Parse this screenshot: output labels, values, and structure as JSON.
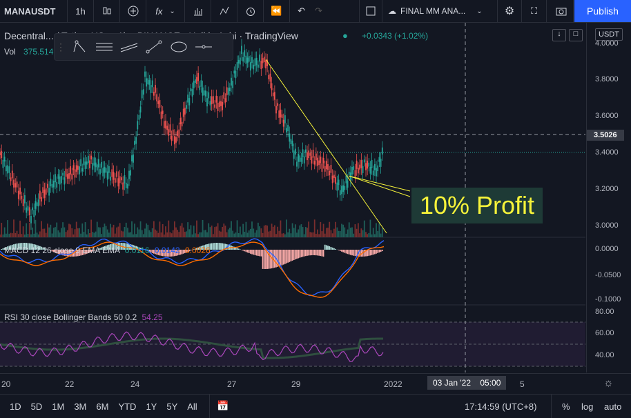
{
  "toolbar": {
    "symbol": "MANAUSDT",
    "interval": "1h",
    "layout_name": "FINAL MM ANA...",
    "publish_label": "Publish"
  },
  "legend": {
    "title": "Decentral... / Tether US ... 1h · BINANCE · Heikin Ashi · TradingView",
    "change": "+0.0343 (+1.02%)",
    "vol_label": "Vol",
    "vol_value": "375.514"
  },
  "indicators": {
    "macd_label": "MACD 12 26 close 9 EMA EMA",
    "macd_v1": "0.0116",
    "macd_v2": "0.0142",
    "macd_v3": "0.0026",
    "rsi_label": "RSI 30 close Bollinger Bands 50 0.2",
    "rsi_value": "54.25"
  },
  "annotation": {
    "text": "10% Profit"
  },
  "price_axis": {
    "currency": "USDT",
    "labels": [
      "4.0000",
      "3.8000",
      "3.6000",
      "3.5026",
      "3.4000",
      "3.2000",
      "3.0000"
    ],
    "macd_labels": [
      "0.0000",
      "-0.0500",
      "-0.1000"
    ],
    "rsi_labels": [
      "80.00",
      "60.00",
      "40.00"
    ]
  },
  "time_axis": {
    "labels": [
      "20",
      "22",
      "24",
      "27",
      "29",
      "2022",
      "5"
    ],
    "crosshair_date": "03 Jan '22",
    "crosshair_time": "05:00"
  },
  "bottom": {
    "ranges": [
      "1D",
      "5D",
      "1M",
      "3M",
      "6M",
      "YTD",
      "1Y",
      "5Y",
      "All"
    ],
    "clock": "17:14:59 (UTC+8)",
    "percent": "%",
    "log": "log",
    "auto": "auto"
  },
  "colors": {
    "up": "#26a69a",
    "down": "#ef5350",
    "accent": "#2962ff",
    "annotation": "#f6f33a"
  }
}
